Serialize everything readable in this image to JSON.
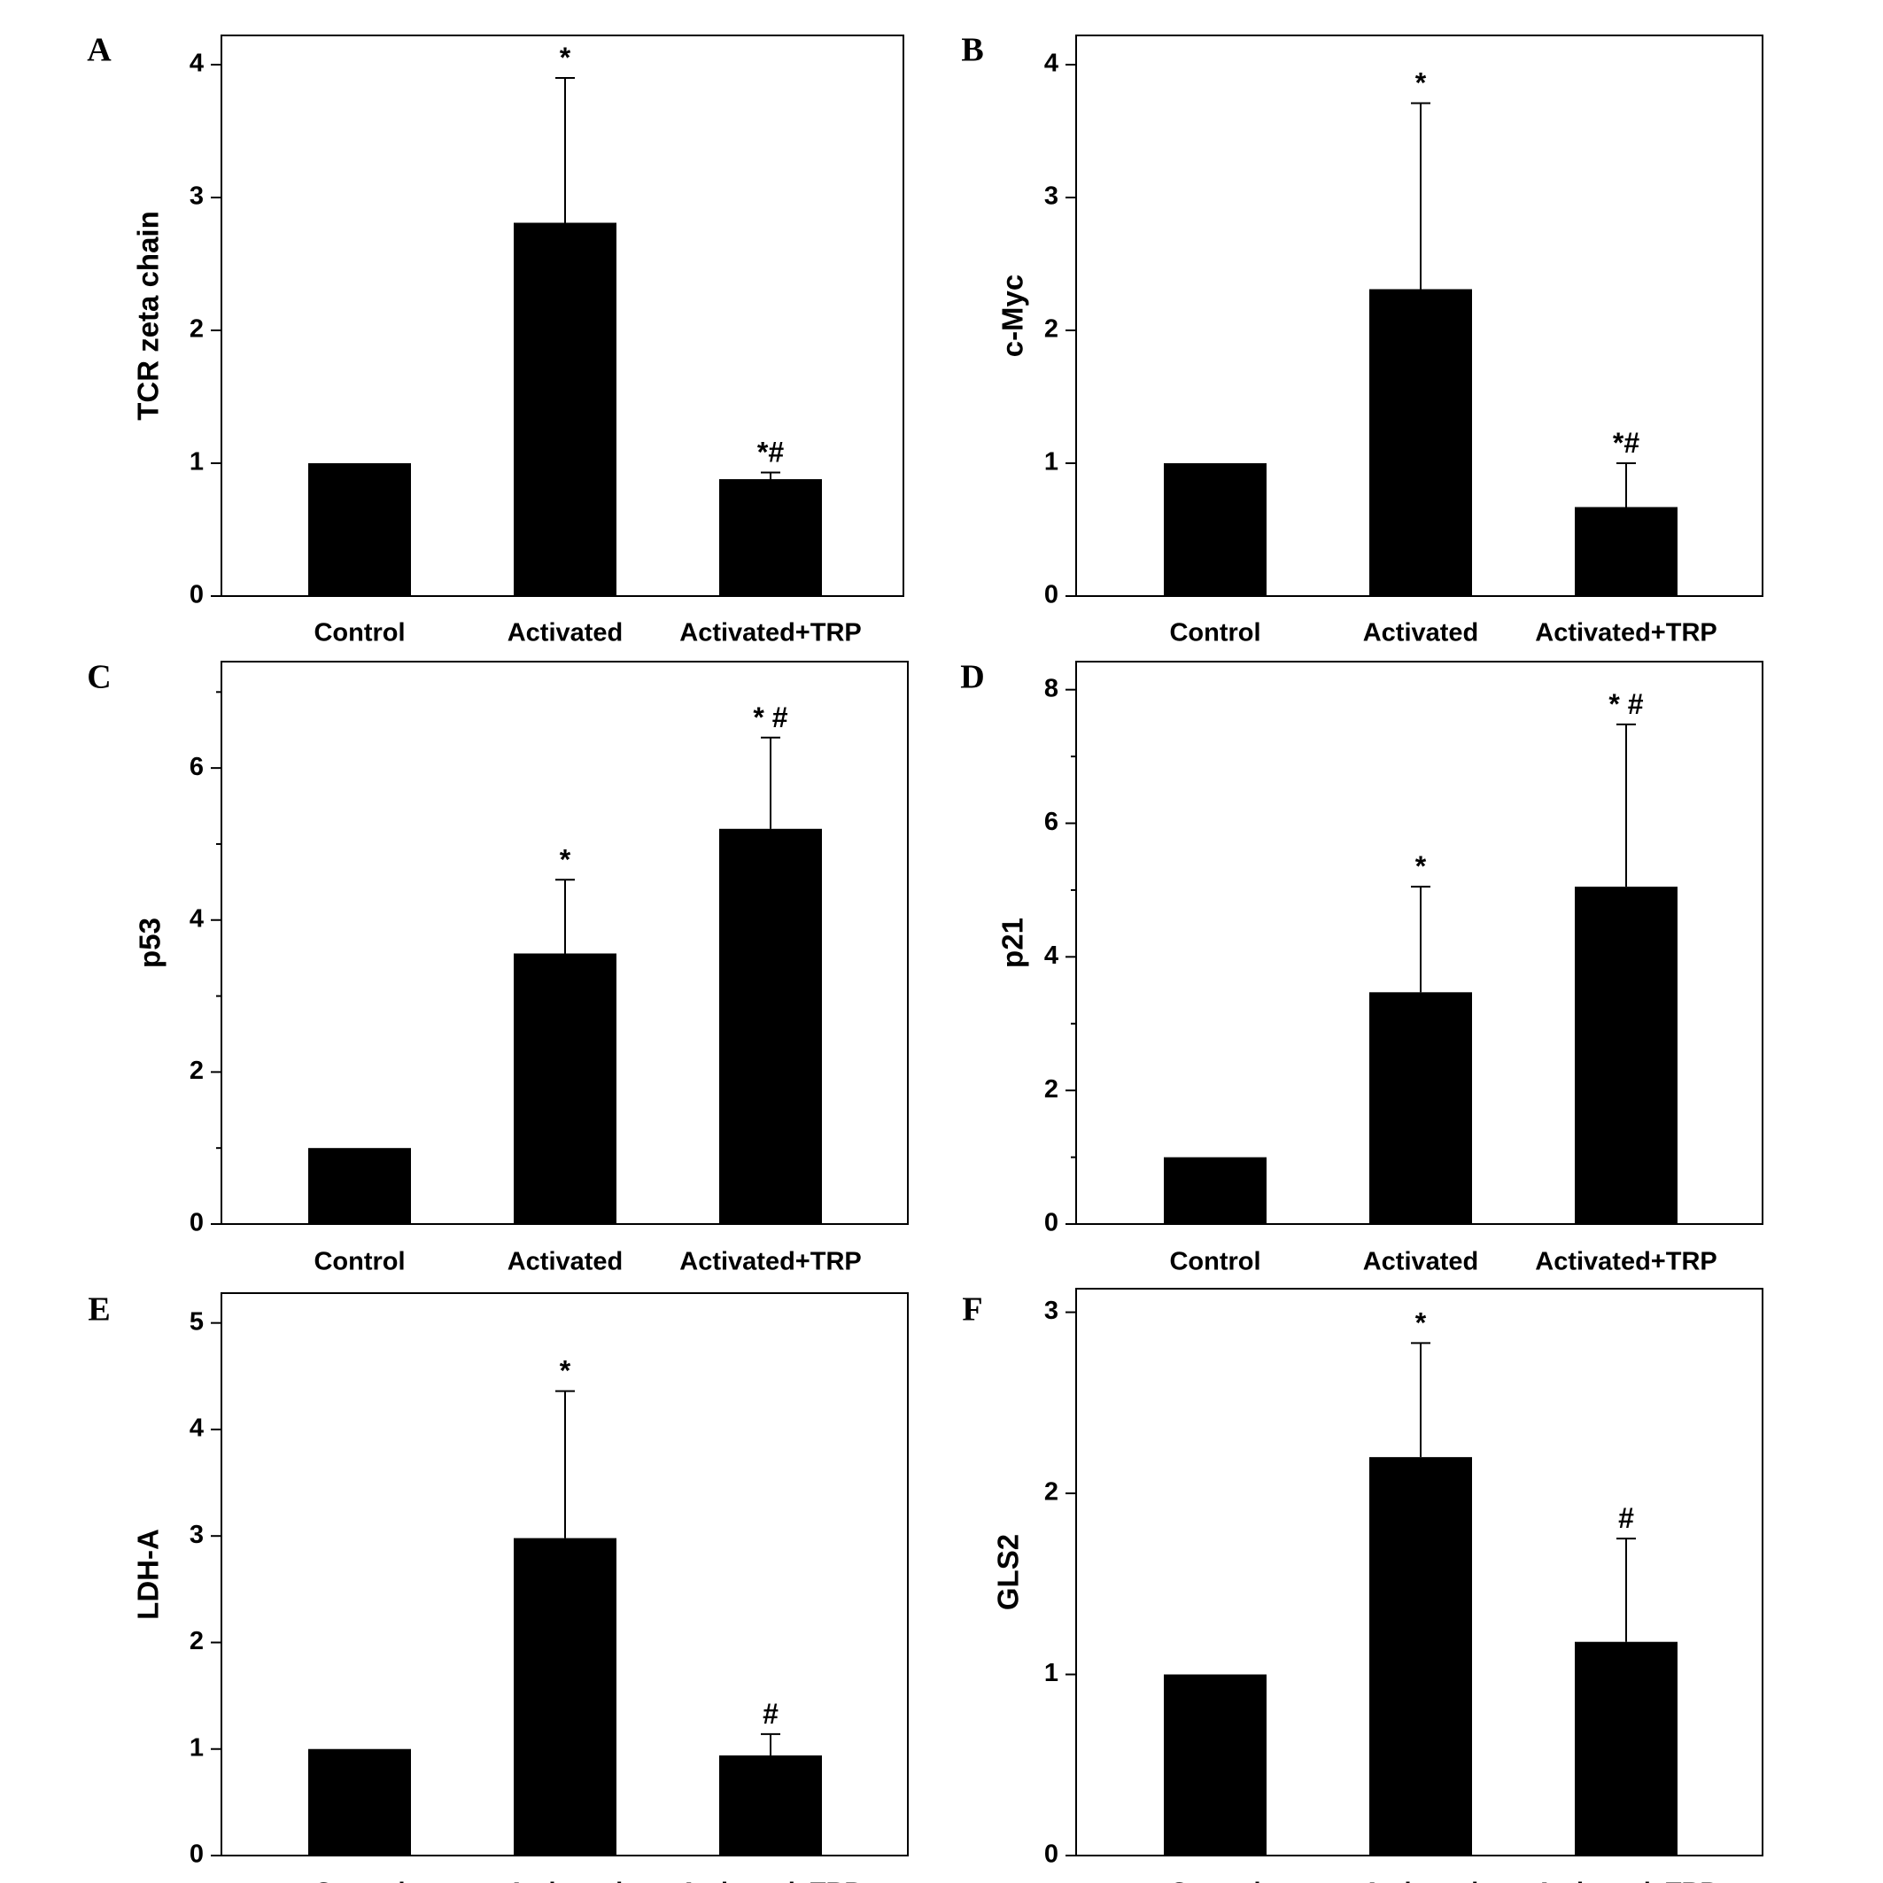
{
  "chart_data": [
    {
      "panel": "A",
      "type": "bar",
      "ylabel": "TCR zeta chain",
      "categories": [
        "Control",
        "Activated",
        "Activated+TRP"
      ],
      "values": [
        1.0,
        2.81,
        0.88
      ],
      "errors": [
        0.0,
        1.09,
        0.05
      ],
      "annotations": [
        "",
        "*",
        "*#"
      ],
      "ylim": [
        0,
        4.22
      ],
      "yticks": [
        0,
        1,
        2,
        3,
        4
      ],
      "minor_ticks": []
    },
    {
      "panel": "B",
      "type": "bar",
      "ylabel": "c-Myc",
      "categories": [
        "Control",
        "Activated",
        "Activated+TRP"
      ],
      "values": [
        1.0,
        2.31,
        0.67
      ],
      "errors": [
        0.0,
        1.4,
        0.33
      ],
      "annotations": [
        "",
        "*",
        "*#"
      ],
      "ylim": [
        0,
        4.22
      ],
      "yticks": [
        0,
        1,
        2,
        3,
        4
      ],
      "minor_ticks": []
    },
    {
      "panel": "C",
      "type": "bar",
      "ylabel": "p53",
      "categories": [
        "Control",
        "Activated",
        "Activated+TRP"
      ],
      "values": [
        1.0,
        3.56,
        5.2
      ],
      "errors": [
        0.0,
        0.97,
        1.2
      ],
      "annotations": [
        "",
        "*",
        "* #"
      ],
      "ylim": [
        0,
        7.4
      ],
      "yticks": [
        0,
        2,
        4,
        6
      ],
      "minor_ticks": [
        1,
        3,
        5,
        7
      ]
    },
    {
      "panel": "D",
      "type": "bar",
      "ylabel": "p21",
      "categories": [
        "Control",
        "Activated",
        "Activated+TRP"
      ],
      "values": [
        1.0,
        3.47,
        5.05
      ],
      "errors": [
        0.0,
        1.58,
        2.43
      ],
      "annotations": [
        "",
        "*",
        "* #"
      ],
      "ylim": [
        0,
        8.42
      ],
      "yticks": [
        0,
        2,
        4,
        6,
        8
      ],
      "minor_ticks": [
        1,
        3,
        5,
        7
      ]
    },
    {
      "panel": "E",
      "type": "bar",
      "ylabel": "LDH-A",
      "categories": [
        "Control",
        "Activated",
        "Activated+TRP"
      ],
      "values": [
        1.0,
        2.98,
        0.94
      ],
      "errors": [
        0.0,
        1.38,
        0.2
      ],
      "annotations": [
        "",
        "*",
        "#"
      ],
      "ylim": [
        0,
        5.28
      ],
      "yticks": [
        0,
        1,
        2,
        3,
        4,
        5
      ],
      "minor_ticks": []
    },
    {
      "panel": "F",
      "type": "bar",
      "ylabel": "GLS2",
      "categories": [
        "Control",
        "Activated",
        "Activated+TRP"
      ],
      "values": [
        1.0,
        2.2,
        1.18
      ],
      "errors": [
        0.0,
        0.63,
        0.57
      ],
      "annotations": [
        "",
        "*",
        "#"
      ],
      "ylim": [
        0,
        3.13
      ],
      "yticks": [
        0,
        1,
        2,
        3
      ],
      "minor_ticks": []
    }
  ]
}
